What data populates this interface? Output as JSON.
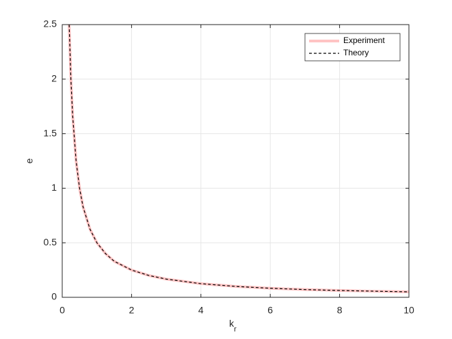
{
  "chart_data": {
    "type": "line",
    "xlabel": {
      "main": "k",
      "sub": "r"
    },
    "ylabel": "e",
    "x": [
      0.2,
      0.25,
      0.3,
      0.4,
      0.5,
      0.6,
      0.8,
      1,
      1.25,
      1.5,
      2,
      2.5,
      3,
      4,
      5,
      6,
      7,
      8,
      9,
      10
    ],
    "series": [
      {
        "name": "Experiment",
        "color": "#ffc4c4",
        "style": "solid",
        "values": [
          2.5,
          2,
          1.67,
          1.25,
          1,
          0.83,
          0.625,
          0.5,
          0.4,
          0.33,
          0.25,
          0.2,
          0.167,
          0.125,
          0.1,
          0.083,
          0.071,
          0.0625,
          0.056,
          0.05
        ]
      },
      {
        "name": "Theory",
        "color": "#000000",
        "style": "dashed",
        "values": [
          2.5,
          2,
          1.67,
          1.25,
          1,
          0.83,
          0.625,
          0.5,
          0.4,
          0.33,
          0.25,
          0.2,
          0.167,
          0.125,
          0.1,
          0.083,
          0.071,
          0.0625,
          0.056,
          0.05
        ]
      }
    ],
    "xlim": [
      0,
      10
    ],
    "xticks": [
      0,
      2,
      4,
      6,
      8,
      10
    ],
    "ylim": [
      0,
      2.5
    ],
    "yticks": [
      0,
      0.5,
      1,
      1.5,
      2,
      2.5
    ],
    "grid": true,
    "legend": "northeast"
  }
}
